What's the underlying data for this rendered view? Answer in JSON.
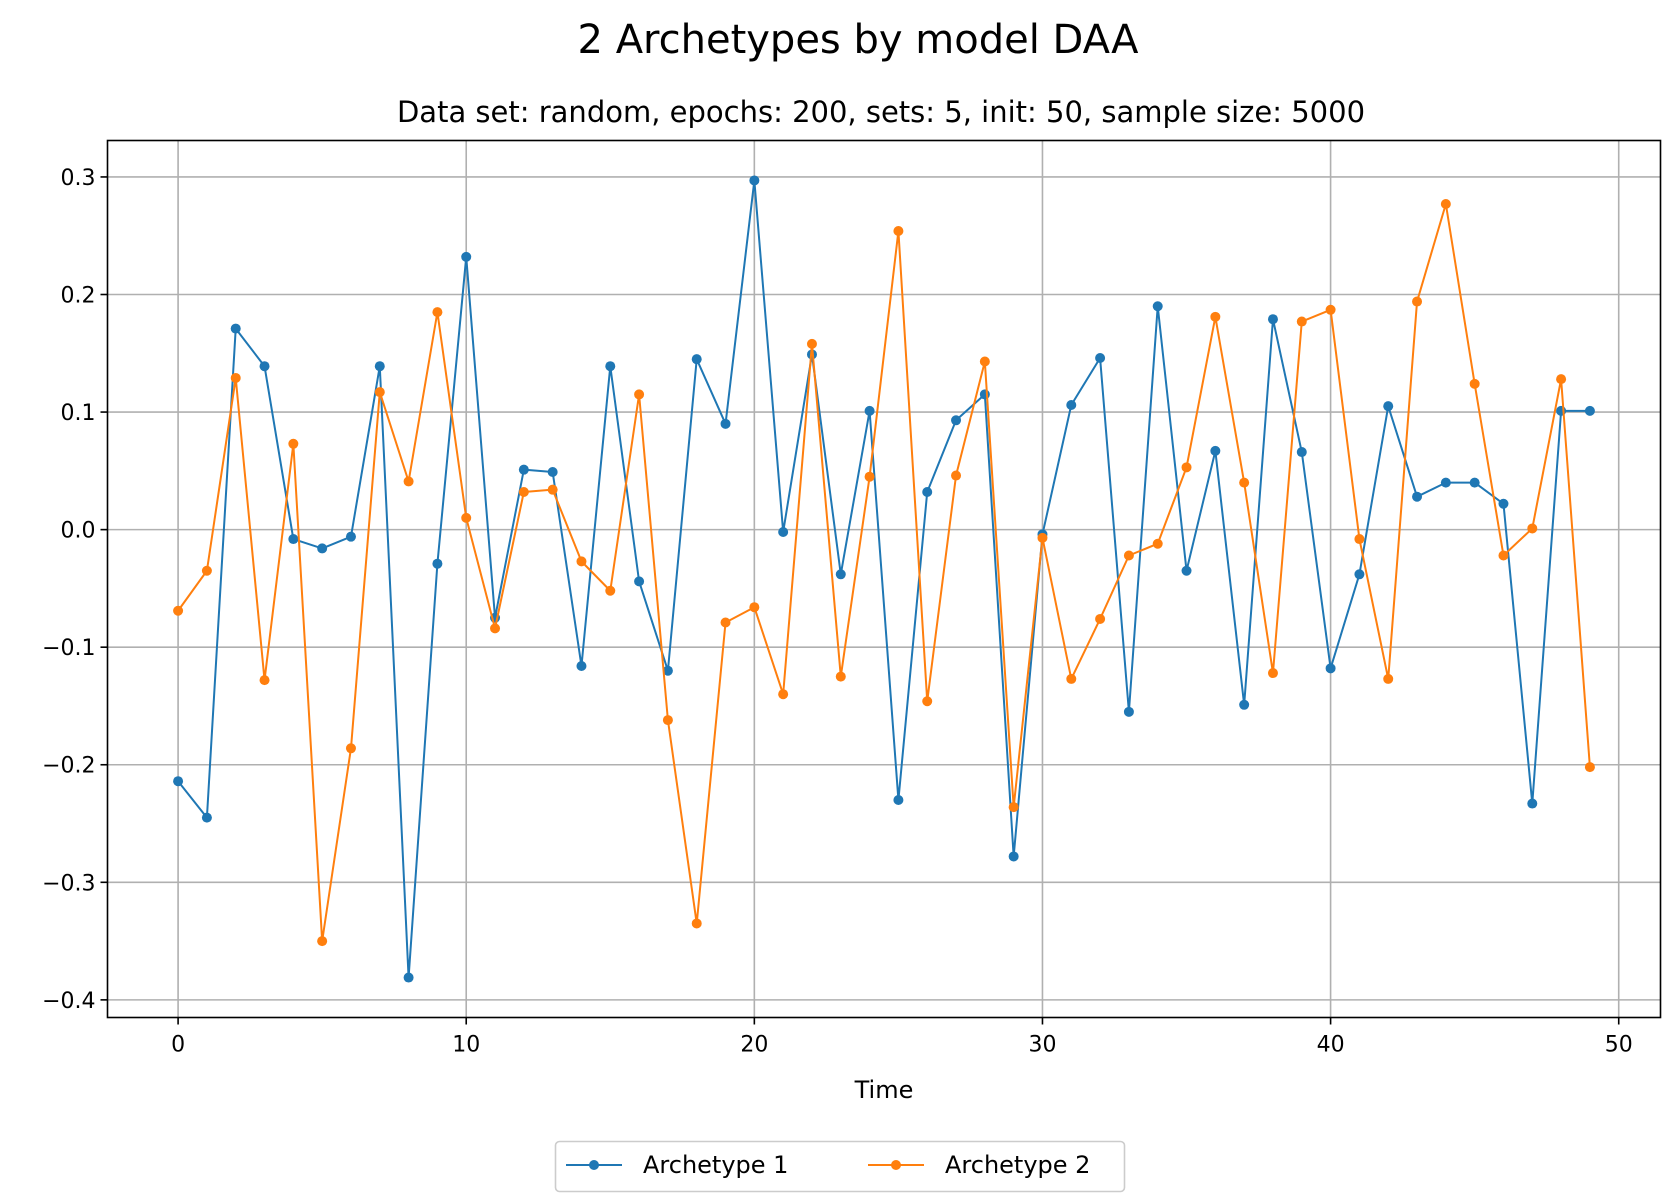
{
  "chart_data": {
    "type": "line",
    "title": "2 Archetypes by model DAA",
    "subtitle": "Data set: random, epochs: 200, sets: 5, init: 50, sample size: 5000",
    "xlabel": "Time",
    "ylabel": "",
    "xlim": [
      -2.45,
      51.45
    ],
    "ylim": [
      -0.415,
      0.331
    ],
    "xticks": [
      0,
      10,
      20,
      30,
      40,
      50
    ],
    "xtick_labels": [
      "0",
      "10",
      "20",
      "30",
      "40",
      "50"
    ],
    "yticks": [
      0.3,
      0.2,
      0.1,
      0.0,
      -0.1,
      -0.2,
      -0.3,
      -0.4
    ],
    "ytick_labels": [
      "0.3",
      "0.2",
      "0.1",
      "0.0",
      "−0.1",
      "−0.2",
      "−0.3",
      "−0.4"
    ],
    "grid": true,
    "legend_position": "below",
    "x": [
      0,
      1,
      2,
      3,
      4,
      5,
      6,
      7,
      8,
      9,
      10,
      11,
      12,
      13,
      14,
      15,
      16,
      17,
      18,
      19,
      20,
      21,
      22,
      23,
      24,
      25,
      26,
      27,
      28,
      29,
      30,
      31,
      32,
      33,
      34,
      35,
      36,
      37,
      38,
      39,
      40,
      41,
      42,
      43,
      44,
      45,
      46,
      47,
      48,
      49
    ],
    "series": [
      {
        "name": "Archetype 1",
        "color": "#1f77b4",
        "values": [
          -0.214,
          -0.245,
          0.171,
          0.139,
          -0.008,
          -0.016,
          -0.006,
          0.139,
          -0.381,
          -0.029,
          0.232,
          -0.075,
          0.051,
          0.049,
          -0.116,
          0.139,
          -0.044,
          -0.12,
          0.145,
          0.09,
          0.297,
          -0.002,
          0.149,
          -0.038,
          0.101,
          -0.23,
          0.032,
          0.093,
          0.115,
          -0.278,
          -0.004,
          0.106,
          0.146,
          -0.155,
          0.19,
          -0.035,
          0.067,
          -0.149,
          0.179,
          0.066,
          -0.118,
          -0.038,
          0.105,
          0.028,
          0.04,
          0.04,
          0.022,
          -0.233,
          0.101,
          0.101
        ]
      },
      {
        "name": "Archetype 2",
        "color": "#ff7f0e",
        "values": [
          -0.069,
          -0.035,
          0.129,
          -0.128,
          0.073,
          -0.35,
          -0.186,
          0.117,
          0.041,
          0.185,
          0.01,
          -0.084,
          0.032,
          0.034,
          -0.027,
          -0.052,
          0.115,
          -0.162,
          -0.335,
          -0.079,
          -0.066,
          -0.14,
          0.158,
          -0.125,
          0.045,
          0.254,
          -0.146,
          0.046,
          0.143,
          -0.236,
          -0.007,
          -0.127,
          -0.076,
          -0.022,
          -0.012,
          0.053,
          0.181,
          0.04,
          -0.122,
          0.177,
          0.187,
          -0.008,
          -0.127,
          0.194,
          0.277,
          0.124,
          -0.022,
          0.001,
          0.128,
          -0.202
        ]
      }
    ]
  }
}
